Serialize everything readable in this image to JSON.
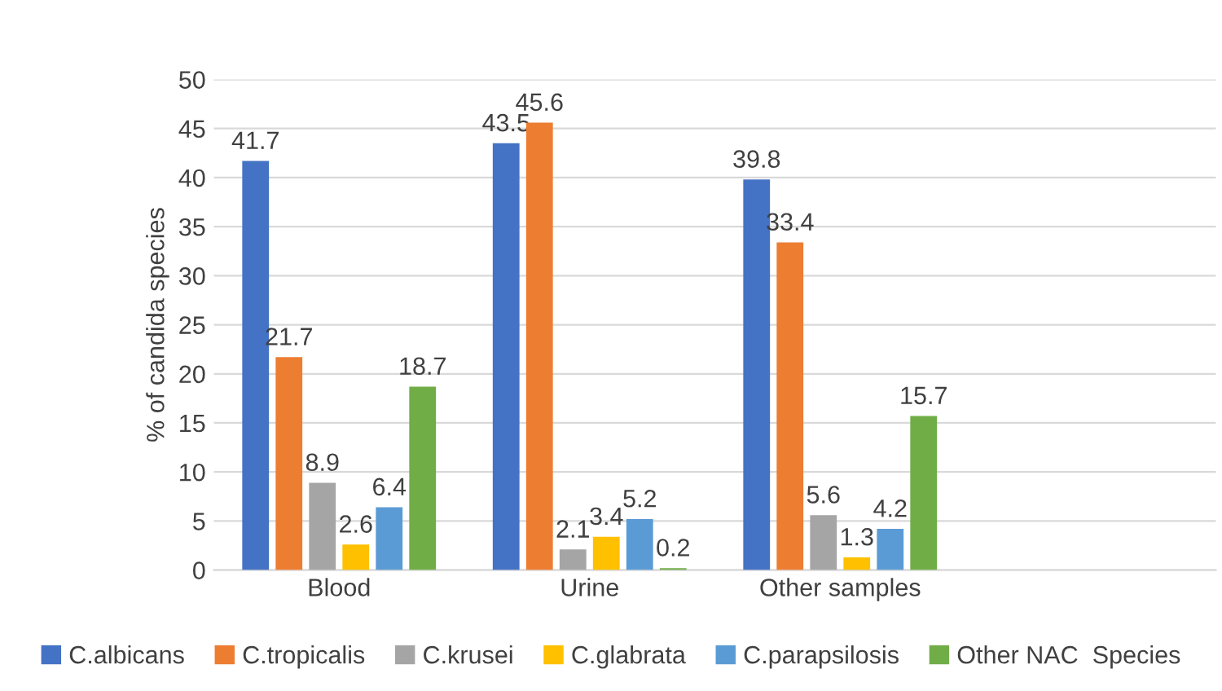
{
  "chart_data": {
    "type": "bar",
    "ylabel": "% of candida species",
    "categories": [
      "Blood",
      "Urine",
      "Other samples",
      null
    ],
    "series": [
      {
        "name": "C.albicans",
        "color": "#4472c4",
        "values": [
          41.7,
          43.5,
          39.8,
          null
        ]
      },
      {
        "name": "C.tropicalis",
        "color": "#ed7d31",
        "values": [
          21.7,
          45.6,
          33.4,
          null
        ]
      },
      {
        "name": "C.krusei",
        "color": "#a5a5a5",
        "values": [
          8.9,
          2.1,
          5.6,
          null
        ]
      },
      {
        "name": "C.glabrata",
        "color": "#ffc000",
        "values": [
          2.6,
          3.4,
          1.3,
          null
        ]
      },
      {
        "name": "C.parapsilosis",
        "color": "#5b9bd5",
        "values": [
          6.4,
          5.2,
          4.2,
          null
        ]
      },
      {
        "name": "Other NAC  Species",
        "color": "#70ad47",
        "values": [
          18.7,
          0.2,
          15.7,
          null
        ]
      }
    ],
    "ylim": [
      0,
      50
    ],
    "yticks": [
      0,
      5,
      10,
      15,
      20,
      25,
      30,
      35,
      40,
      45,
      50
    ],
    "grid": "y",
    "legend": "bottom",
    "data_labels": true
  }
}
